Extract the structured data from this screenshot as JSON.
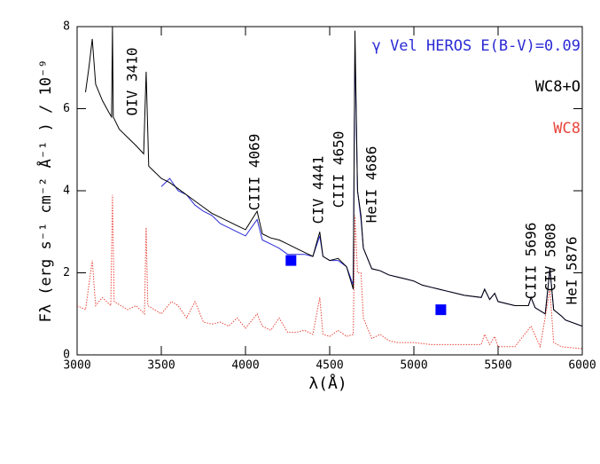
{
  "chart_data": {
    "type": "line",
    "xlabel": "λ(Å)",
    "ylabel": "Fλ (erg s⁻¹ cm⁻² Å⁻¹ ) / 10⁻⁹",
    "xlim": [
      3000,
      6000
    ],
    "ylim": [
      0,
      8
    ],
    "xticks": [
      3000,
      3500,
      4000,
      4500,
      5000,
      5500,
      6000
    ],
    "yticks": [
      0,
      2,
      4,
      6,
      8
    ],
    "series": [
      {
        "name": "γ Vel HEROS E(B-V)=0.09",
        "color": "#2b2bd6",
        "style": "solid",
        "x": [
          3500,
          3550,
          3600,
          3650,
          3700,
          3750,
          3800,
          3850,
          3900,
          3950,
          4000,
          4069,
          4100,
          4150,
          4200,
          4250,
          4300,
          4350,
          4400,
          4441,
          4460,
          4500,
          4550,
          4600,
          4640,
          4650,
          4665,
          4686,
          4700,
          4750,
          4800,
          4850,
          4900,
          4950,
          5000,
          5050,
          5100,
          5150,
          5200,
          5300,
          5400,
          5420,
          5450,
          5480,
          5500,
          5600,
          5680,
          5696,
          5720,
          5780,
          5808,
          5830,
          5876,
          5900,
          6000
        ],
        "values": [
          4.1,
          4.3,
          4.0,
          3.9,
          3.65,
          3.5,
          3.4,
          3.2,
          3.1,
          3.0,
          2.9,
          3.3,
          2.8,
          2.7,
          2.6,
          2.45,
          2.45,
          2.45,
          2.4,
          2.9,
          2.4,
          2.3,
          2.3,
          2.15,
          1.7,
          7.5,
          4.0,
          3.3,
          2.6,
          2.1,
          2.05,
          1.95,
          1.9,
          1.85,
          1.8,
          1.7,
          1.65,
          1.6,
          1.55,
          1.45,
          1.4,
          1.6,
          1.35,
          1.5,
          1.3,
          1.2,
          1.2,
          1.4,
          1.15,
          1.0,
          2.1,
          1.1,
          0.95,
          0.85,
          0.7
        ]
      },
      {
        "name": "WC8+O",
        "color": "#000000",
        "style": "solid",
        "x": [
          3050,
          3070,
          3090,
          3110,
          3150,
          3190,
          3205,
          3210,
          3215,
          3250,
          3300,
          3350,
          3395,
          3410,
          3425,
          3450,
          3500,
          3550,
          3600,
          3650,
          3700,
          3750,
          3800,
          3850,
          3900,
          3950,
          4000,
          4069,
          4100,
          4150,
          4200,
          4250,
          4300,
          4350,
          4400,
          4441,
          4460,
          4500,
          4550,
          4600,
          4640,
          4650,
          4665,
          4686,
          4700,
          4750,
          4800,
          4850,
          4900,
          4950,
          5000,
          5050,
          5100,
          5150,
          5200,
          5300,
          5400,
          5420,
          5450,
          5480,
          5500,
          5600,
          5680,
          5696,
          5720,
          5780,
          5808,
          5830,
          5876,
          5900,
          6000
        ],
        "values": [
          6.4,
          7.0,
          7.7,
          6.6,
          6.2,
          5.9,
          5.8,
          8.0,
          5.8,
          5.5,
          5.3,
          5.1,
          4.9,
          6.9,
          4.6,
          4.5,
          4.3,
          4.2,
          4.05,
          3.9,
          3.75,
          3.6,
          3.45,
          3.35,
          3.25,
          3.15,
          3.05,
          3.5,
          2.95,
          2.85,
          2.8,
          2.7,
          2.6,
          2.5,
          2.4,
          3.0,
          2.4,
          2.3,
          2.35,
          2.15,
          1.6,
          7.9,
          4.0,
          3.4,
          2.6,
          2.1,
          2.05,
          1.95,
          1.9,
          1.85,
          1.8,
          1.7,
          1.65,
          1.6,
          1.55,
          1.45,
          1.4,
          1.6,
          1.35,
          1.5,
          1.3,
          1.2,
          1.2,
          1.4,
          1.15,
          1.0,
          2.1,
          1.1,
          0.95,
          0.85,
          0.7
        ]
      },
      {
        "name": "WC8",
        "color": "#e8463c",
        "style": "dotted",
        "x": [
          3000,
          3050,
          3090,
          3110,
          3150,
          3200,
          3210,
          3220,
          3300,
          3350,
          3400,
          3410,
          3420,
          3500,
          3560,
          3600,
          3650,
          3700,
          3750,
          3800,
          3850,
          3900,
          3950,
          4000,
          4069,
          4100,
          4150,
          4200,
          4250,
          4300,
          4350,
          4400,
          4441,
          4460,
          4500,
          4550,
          4600,
          4640,
          4650,
          4665,
          4686,
          4700,
          4750,
          4800,
          4850,
          4900,
          5000,
          5100,
          5200,
          5300,
          5400,
          5420,
          5450,
          5480,
          5500,
          5600,
          5696,
          5750,
          5808,
          5830,
          5876,
          6000
        ],
        "values": [
          1.2,
          1.1,
          2.3,
          1.2,
          1.4,
          1.2,
          3.9,
          1.3,
          1.1,
          1.2,
          1.0,
          3.1,
          1.2,
          1.0,
          1.3,
          1.2,
          0.9,
          1.3,
          0.8,
          0.75,
          0.8,
          0.7,
          0.9,
          0.65,
          1.0,
          0.7,
          0.6,
          0.9,
          0.55,
          0.55,
          0.6,
          0.5,
          1.4,
          0.5,
          0.45,
          0.6,
          0.45,
          0.5,
          3.4,
          2.0,
          2.0,
          0.9,
          0.4,
          0.5,
          0.35,
          0.3,
          0.3,
          0.25,
          0.25,
          0.25,
          0.25,
          0.5,
          0.25,
          0.45,
          0.2,
          0.2,
          0.7,
          0.2,
          1.6,
          0.3,
          0.2,
          0.15
        ]
      }
    ],
    "markers": {
      "color": "#0000ff",
      "x": [
        4270,
        5160
      ],
      "values": [
        2.3,
        1.1
      ]
    },
    "annotations": [
      "OIV 3410",
      "CIII 4069",
      "CIV 4441",
      "CIII 4650",
      "HeII 4686",
      "CIII 5696",
      "CIV 5808",
      "HeI 5876"
    ]
  }
}
